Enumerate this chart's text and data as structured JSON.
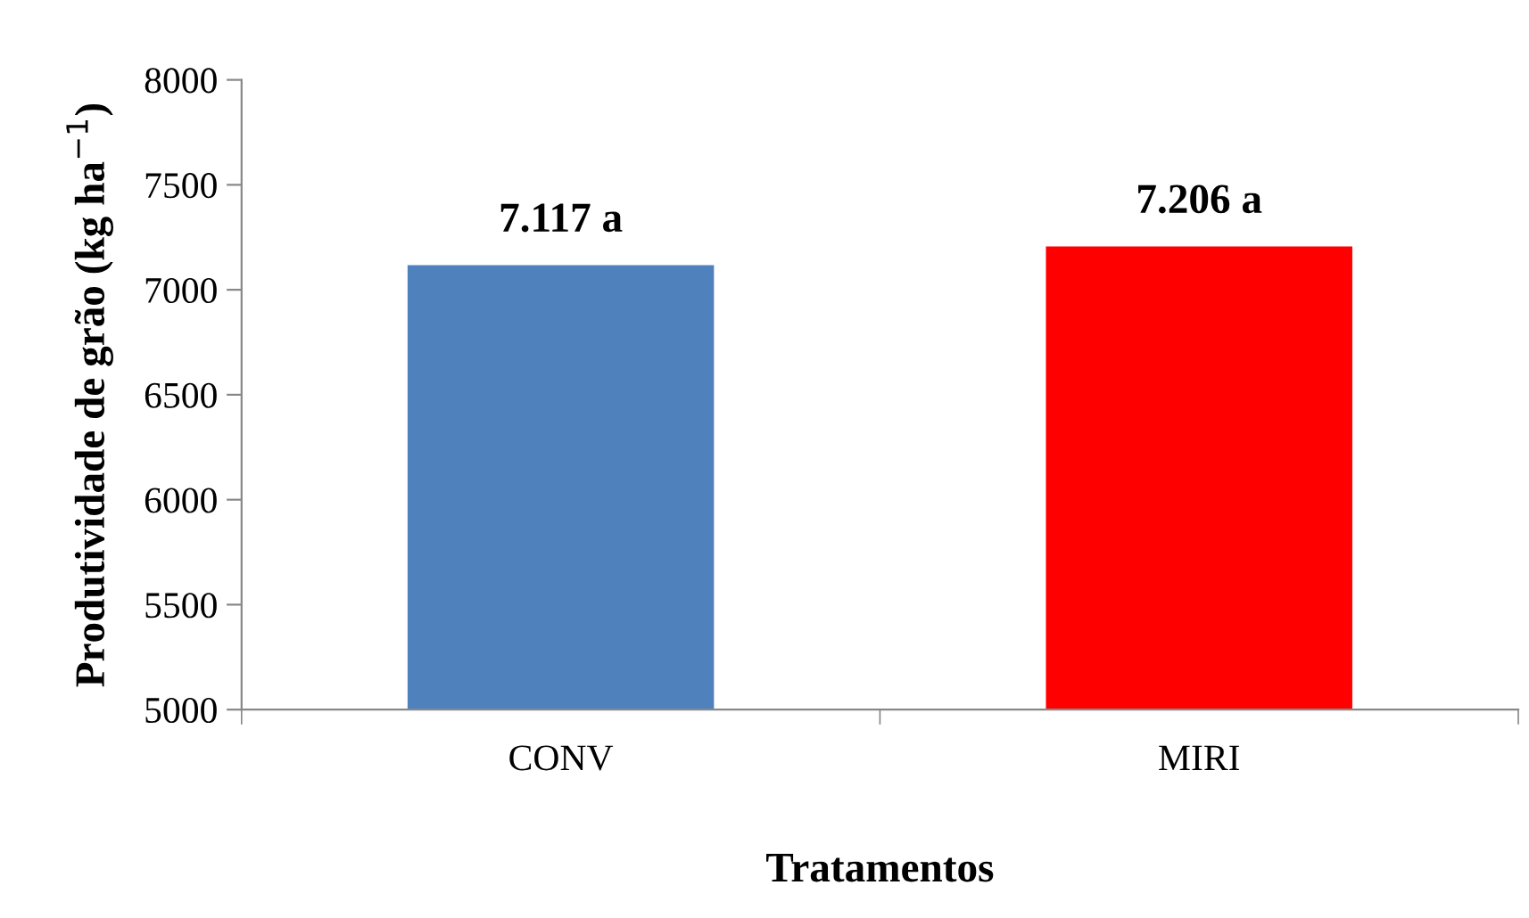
{
  "chart_data": {
    "type": "bar",
    "xlabel": "Tratamentos",
    "ylabel": "Produtividade de grão (kg ha$^{−1}$)",
    "categories": [
      "CONV",
      "MIRI"
    ],
    "values": [
      7117,
      7206
    ],
    "colors": [
      "#4f81bd",
      "#ff0000"
    ],
    "value_labels": [
      "7.117 a",
      "7.206 a"
    ],
    "ylim": [
      5000,
      8000
    ],
    "yticks": [
      5000,
      5500,
      6000,
      6500,
      7000,
      7500,
      8000
    ],
    "grid": false,
    "legend": false
  }
}
